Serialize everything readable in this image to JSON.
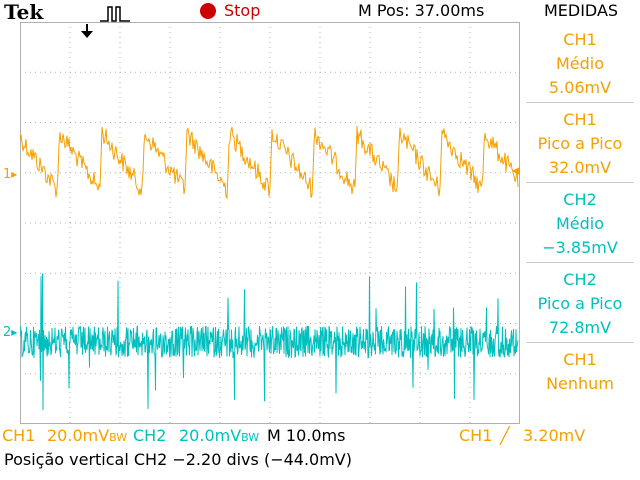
{
  "header": {
    "brand": "Tek",
    "run_state": "Stop",
    "m_pos": "M Pos: 37.00ms",
    "panel_title": "MEDIDAS"
  },
  "markers": {
    "ch1": "1",
    "ch2": "2"
  },
  "measurements": [
    {
      "channel": "CH1",
      "type": "Médio",
      "value": "5.06mV",
      "color": "#f5a000"
    },
    {
      "channel": "CH1",
      "type": "Pico a Pico",
      "value": "32.0mV",
      "color": "#f5a000"
    },
    {
      "channel": "CH2",
      "type": "Médio",
      "value": "−3.85mV",
      "color": "#00bfbf"
    },
    {
      "channel": "CH2",
      "type": "Pico a Pico",
      "value": "72.8mV",
      "color": "#00bfbf"
    },
    {
      "channel": "CH1",
      "type": "Nenhum",
      "value": "",
      "color": "#f5a000"
    }
  ],
  "footer": {
    "ch1_label": "CH1",
    "ch1_scale": "20.0mV",
    "ch1_bw": "BW",
    "ch2_label": "CH2",
    "ch2_scale": "20.0mV",
    "ch2_bw": "BW",
    "timebase": "M 10.0ms",
    "trigger_channel": "CH1",
    "trigger_slope": "╱",
    "trigger_level": "3.20mV",
    "status_line": "Posição vertical CH2 −2.20 divs (−44.0mV)"
  },
  "colors": {
    "ch1": "#f5a000",
    "ch2": "#00bfbf",
    "stop": "#cc0000",
    "grid": "#b0b0b0"
  }
}
